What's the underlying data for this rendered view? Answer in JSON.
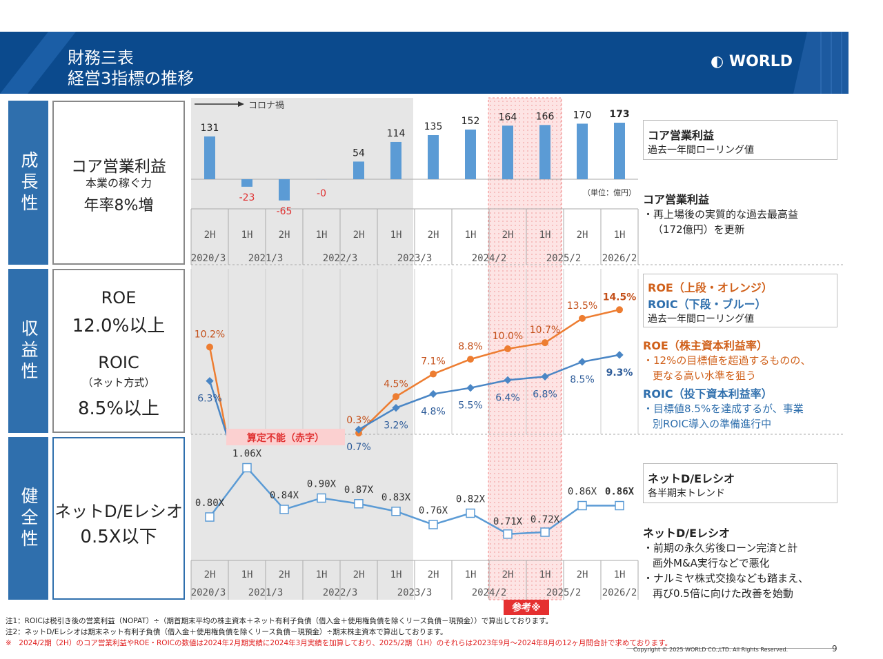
{
  "header": {
    "title_line1": "財務三表",
    "title_line2": "経営3指標の推移",
    "logo_text": "WORLD"
  },
  "categories": {
    "growth": "成長性",
    "profitability": "収益性",
    "soundness": "健全性"
  },
  "kpis": {
    "core_title": "コア営業利益",
    "core_sub": "本業の稼ぐ力",
    "core_target": "年率8%増",
    "roe_title": "ROE",
    "roe_target": "12.0%以上",
    "roic_title": "ROIC",
    "roic_sub": "（ネット方式）",
    "roic_target": "8.5%以上",
    "de_title": "ネットD/Eレシオ",
    "de_target": "0.5X以下"
  },
  "annotations": {
    "corona": "コロナ禍",
    "unit": "（単位：億円）",
    "not_calc": "算定不能（赤字）",
    "reference": "参考※"
  },
  "legend": {
    "core_title": "コア営業利益",
    "core_sub": "過去一年間ローリング値",
    "roe_title": "ROE（上段・オレンジ）",
    "roic_title": "ROIC（下段・ブルー）",
    "roeroic_sub": "過去一年間ローリング値",
    "de_title": "ネットD/Eレシオ",
    "de_sub": "各半期末トレンド"
  },
  "descriptions": {
    "core_title": "コア営業利益",
    "core_lines": [
      "・再上場後の実質的な過去最高益",
      "（172億円）を更新"
    ],
    "roe_title": "ROE（株主資本利益率）",
    "roe_lines": [
      "・12%の目標値を超過するものの、",
      "更なる高い水準を狙う"
    ],
    "roic_title": "ROIC（投下資本利益率）",
    "roic_lines": [
      "・目標値8.5%を達成するが、事業",
      "別ROIC導入の準備進行中"
    ],
    "de_title": "ネットD/Eレシオ",
    "de_lines": [
      "・前期の永久劣後ローン完済と計",
      "画外M&A実行などで悪化",
      "・ナルミヤ株式交換なども踏まえ、",
      "再び0.5倍に向けた改善を始動"
    ]
  },
  "axis": {
    "halves": [
      "2H",
      "1H",
      "2H",
      "1H",
      "2H",
      "1H",
      "2H",
      "1H",
      "2H",
      "1H",
      "2H",
      "1H"
    ],
    "years": [
      "2020/3",
      "2021/3",
      "2022/3",
      "2023/3",
      "2024/2",
      "2025/2",
      "2026/2"
    ]
  },
  "chart_data": [
    {
      "type": "bar",
      "title": "コア営業利益",
      "ylabel": "億円",
      "categories": [
        "2020/3 2H",
        "2021/3 1H",
        "2021/3 2H",
        "2022/3 1H",
        "2022/3 2H",
        "2023/3 1H",
        "2023/3 2H",
        "2024/2 1H",
        "2024/2 2H",
        "2025/2 1H",
        "2025/2 2H",
        "2026/2 1H"
      ],
      "values": [
        131,
        -23,
        -65,
        0,
        54,
        114,
        135,
        152,
        164,
        166,
        170,
        173
      ],
      "labels": [
        "131",
        "-23",
        "-65",
        "-0",
        "54",
        "114",
        "135",
        "152",
        "164",
        "166",
        "170",
        "173"
      ],
      "color": "#5b9bd5",
      "negative_label_color": "#e03030"
    },
    {
      "type": "line",
      "title": "ROE / ROIC",
      "categories": [
        "2020/3 2H",
        "2021/3 1H",
        "2021/3 2H",
        "2022/3 1H",
        "2022/3 2H",
        "2023/3 1H",
        "2023/3 2H",
        "2024/2 1H",
        "2024/2 2H",
        "2025/2 1H",
        "2025/2 2H",
        "2026/2 1H"
      ],
      "series": [
        {
          "name": "ROE",
          "color": "#ed7d31",
          "values": [
            10.2,
            null,
            null,
            null,
            0.3,
            4.5,
            7.1,
            8.8,
            10.0,
            10.7,
            13.5,
            14.5
          ],
          "labels": [
            "10.2%",
            "",
            "",
            "",
            "0.3%",
            "4.5%",
            "7.1%",
            "8.8%",
            "10.0%",
            "10.7%",
            "13.5%",
            "14.5%"
          ]
        },
        {
          "name": "ROIC",
          "color": "#4a86c5",
          "values": [
            6.3,
            null,
            null,
            null,
            0.7,
            3.2,
            4.8,
            5.5,
            6.4,
            6.8,
            8.5,
            9.3
          ],
          "labels": [
            "6.3%",
            "",
            "",
            "",
            "0.7%",
            "3.2%",
            "4.8%",
            "5.5%",
            "6.4%",
            "6.8%",
            "8.5%",
            "9.3%"
          ]
        }
      ]
    },
    {
      "type": "line",
      "title": "ネットD/Eレシオ",
      "categories": [
        "2020/3 2H",
        "2021/3 1H",
        "2021/3 2H",
        "2022/3 1H",
        "2022/3 2H",
        "2023/3 1H",
        "2023/3 2H",
        "2024/2 1H",
        "2024/2 2H",
        "2025/2 1H",
        "2025/2 2H",
        "2026/2 1H"
      ],
      "series": [
        {
          "name": "ネットD/Eレシオ",
          "color": "#5b9bd5",
          "values": [
            0.8,
            1.06,
            0.84,
            0.9,
            0.87,
            0.83,
            0.76,
            0.82,
            0.71,
            0.72,
            0.86,
            0.86
          ],
          "labels": [
            "0.80X",
            "1.06X",
            "0.84X",
            "0.90X",
            "0.87X",
            "0.83X",
            "0.76X",
            "0.82X",
            "0.71X",
            "0.72X",
            "0.86X",
            "0.86X"
          ]
        }
      ]
    }
  ],
  "notes": {
    "n1": "注1：ROICは税引き後の営業利益（NOPAT）÷（期首期末平均の株主資本＋ネット有利子負債（借入金＋使用権負債を除くリース負債－現預金））で算出しております。",
    "n2": "注2：ネットD/Eレシオは期末ネット有利子負債（借入金＋使用権負債を除くリース負債－現預金）÷期末株主資本で算出しております。",
    "n3": "※　2024/2期（2H）のコア営業利益やROE・ROICの数値は2024年2月期実績に2024年3月実績を加算しており、2025/2期（1H）のそれらは2023年9月～2024年8月の12ヶ月間合計で求めております。"
  },
  "footer": {
    "copyright": "Copyright © 2025 WORLD CO.,LTD. All Rights Reserved.",
    "page": "9"
  }
}
